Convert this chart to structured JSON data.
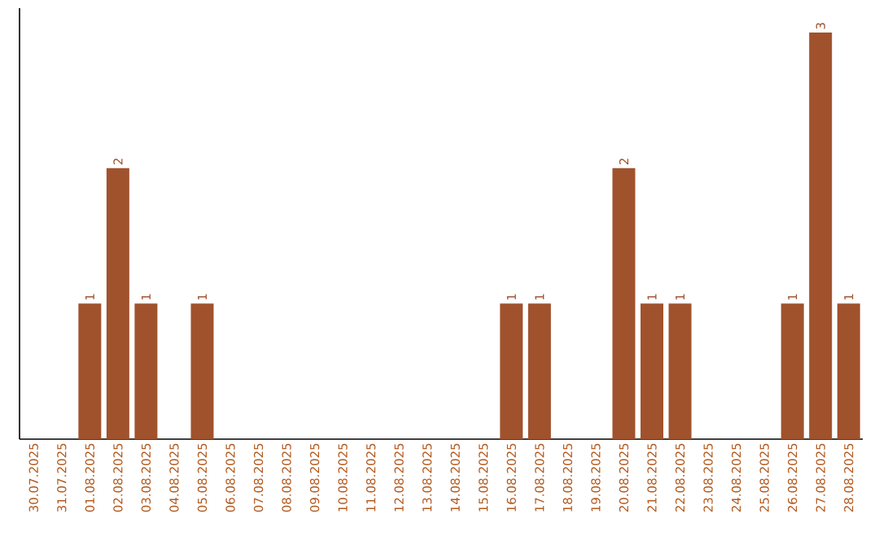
{
  "chart_data": {
    "type": "bar",
    "categories": [
      "30.07.2025",
      "31.07.2025",
      "01.08.2025",
      "02.08.2025",
      "03.08.2025",
      "04.08.2025",
      "05.08.2025",
      "06.08.2025",
      "07.08.2025",
      "08.08.2025",
      "09.08.2025",
      "10.08.2025",
      "11.08.2025",
      "12.08.2025",
      "13.08.2025",
      "14.08.2025",
      "15.08.2025",
      "16.08.2025",
      "17.08.2025",
      "18.08.2025",
      "19.08.2025",
      "20.08.2025",
      "21.08.2025",
      "22.08.2025",
      "23.08.2025",
      "24.08.2025",
      "25.08.2025",
      "26.08.2025",
      "27.08.2025",
      "28.08.2025"
    ],
    "values": [
      0,
      0,
      1,
      2,
      1,
      0,
      1,
      0,
      0,
      0,
      0,
      0,
      0,
      0,
      0,
      0,
      0,
      1,
      1,
      0,
      0,
      2,
      1,
      1,
      0,
      0,
      0,
      1,
      3,
      1
    ],
    "value_labels": [
      null,
      null,
      "1",
      "2",
      "1",
      null,
      "1",
      null,
      null,
      null,
      null,
      null,
      null,
      null,
      null,
      null,
      null,
      "1",
      "1",
      null,
      null,
      "2",
      "1",
      "1",
      null,
      null,
      null,
      "1",
      "3",
      "1"
    ],
    "color": "#a0522d",
    "tick_labels": "x"
  }
}
